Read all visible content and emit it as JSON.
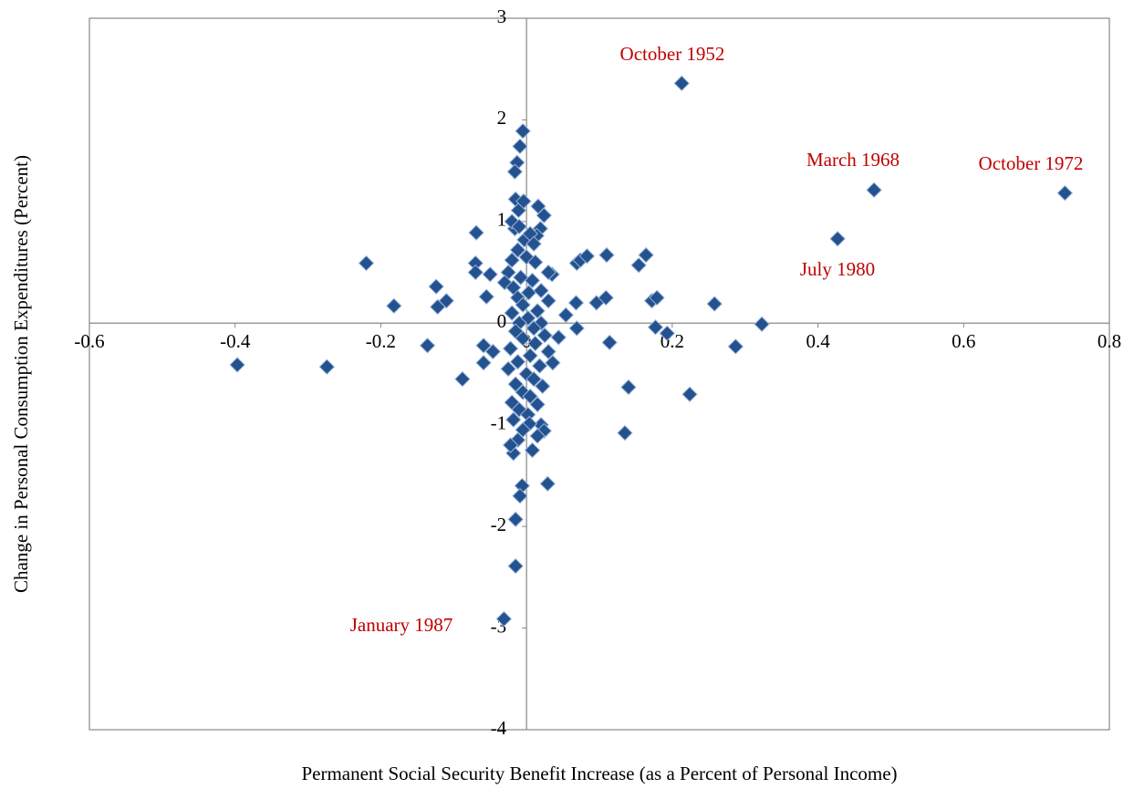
{
  "chart_data": {
    "type": "scatter",
    "x_label": "Permanent Social Security Benefit Increase (as a Percent of Personal Income)",
    "y_label": "Change in Personal Consumption Expenditures (Percent)",
    "annotations": [
      "October 1952",
      "March 1968",
      "October 1972",
      "July 1980",
      "January 1987"
    ],
    "color": "#24528f",
    "edge_color": "#9ab5dc",
    "xlim": [
      -0.6,
      0.8
    ],
    "xticks": [
      -0.6,
      -0.4,
      -0.2,
      0,
      0.2,
      0.4,
      0.6,
      0.8
    ],
    "ylim": [
      -4,
      3
    ],
    "yticks": [
      -4,
      -3,
      -2,
      -1,
      0,
      1,
      2,
      3
    ],
    "x": [
      0.213,
      0.477,
      0.739,
      0.427,
      -0.031,
      -0.397,
      -0.274,
      -0.22,
      -0.182,
      -0.136,
      -0.124,
      -0.122,
      -0.11,
      -0.088,
      -0.069,
      -0.07,
      -0.07,
      -0.059,
      -0.059,
      -0.055,
      -0.05,
      -0.046,
      0.035,
      0.029,
      0.036,
      0.044,
      0.054,
      0.068,
      0.069,
      0.069,
      0.074,
      0.083,
      0.096,
      0.109,
      0.11,
      0.114,
      0.135,
      0.14,
      0.154,
      0.164,
      0.172,
      0.179,
      0.177,
      0.193,
      0.224,
      0.258,
      0.287,
      0.323,
      -0.005,
      -0.009,
      -0.013,
      -0.016,
      -0.015,
      -0.011,
      -0.004,
      0.016,
      0.024,
      0.019,
      0.014,
      -0.016,
      -0.003,
      -0.02,
      -0.01,
      0.005,
      0.01,
      -0.012,
      -0.02,
      0.0,
      0.012,
      -0.025,
      -0.008,
      0.008,
      0.03,
      -0.03,
      -0.018,
      0.003,
      0.02,
      -0.012,
      0.03,
      -0.005,
      0.015,
      -0.02,
      0.002,
      -0.01,
      0.02,
      0.01,
      -0.015,
      0.025,
      -0.005,
      0.012,
      -0.022,
      0.03,
      0.005,
      -0.012,
      0.018,
      -0.025,
      0.0,
      0.01,
      -0.015,
      0.022,
      -0.005,
      0.005,
      -0.02,
      0.015,
      -0.01,
      0.002,
      -0.018,
      0.02,
      0.004,
      0.024,
      -0.005,
      -0.012,
      0.015,
      0.008,
      -0.018,
      -0.022,
      -0.006,
      -0.009,
      -0.015,
      -0.015
    ],
    "values": [
      2.36,
      1.31,
      1.28,
      0.83,
      -2.91,
      -0.41,
      -0.43,
      0.59,
      0.17,
      -0.22,
      0.36,
      0.16,
      0.22,
      -0.55,
      0.89,
      0.59,
      0.5,
      -0.22,
      -0.39,
      0.26,
      0.48,
      -0.28,
      0.48,
      -1.58,
      -0.39,
      -0.14,
      0.08,
      0.2,
      -0.05,
      0.59,
      0.62,
      0.66,
      0.2,
      0.25,
      0.67,
      -0.19,
      -1.08,
      -0.63,
      0.57,
      0.67,
      0.22,
      0.25,
      -0.04,
      -0.1,
      -0.7,
      0.19,
      -0.23,
      -0.01,
      1.89,
      1.74,
      1.58,
      1.49,
      1.22,
      1.11,
      1.2,
      1.15,
      1.06,
      0.93,
      0.86,
      0.93,
      0.82,
      1.0,
      0.95,
      0.88,
      0.78,
      0.72,
      0.62,
      0.65,
      0.6,
      0.5,
      0.45,
      0.42,
      0.5,
      0.4,
      0.35,
      0.3,
      0.32,
      0.25,
      0.22,
      0.18,
      0.12,
      0.1,
      0.05,
      0.0,
      0.0,
      -0.05,
      -0.08,
      -0.12,
      -0.15,
      -0.2,
      -0.25,
      -0.28,
      -0.32,
      -0.38,
      -0.42,
      -0.45,
      -0.5,
      -0.55,
      -0.6,
      -0.62,
      -0.68,
      -0.72,
      -0.78,
      -0.8,
      -0.85,
      -0.9,
      -0.95,
      -1.0,
      -0.99,
      -1.06,
      -1.05,
      -1.15,
      -1.11,
      -1.25,
      -1.28,
      -1.2,
      -1.6,
      -1.7,
      -1.93,
      -2.39
    ]
  }
}
